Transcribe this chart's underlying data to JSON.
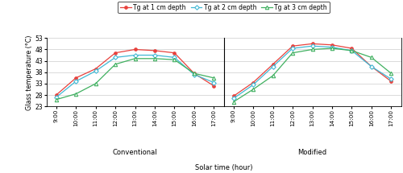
{
  "time_labels": [
    "9:00",
    "10:00",
    "11:00",
    "12:00",
    "13:00",
    "14:00",
    "15:00",
    "16:00",
    "17:00"
  ],
  "conv_1cm": [
    28.0,
    35.5,
    39.5,
    46.5,
    48.0,
    47.5,
    46.5,
    37.5,
    32.0
  ],
  "conv_2cm": [
    27.0,
    34.0,
    38.5,
    44.5,
    45.5,
    45.5,
    44.5,
    37.0,
    33.5
  ],
  "conv_3cm": [
    26.0,
    28.5,
    33.0,
    41.5,
    44.0,
    44.0,
    43.5,
    37.5,
    35.5
  ],
  "mod_1cm": [
    27.5,
    33.5,
    41.5,
    49.5,
    50.5,
    50.0,
    48.5,
    40.5,
    34.0
  ],
  "mod_2cm": [
    26.5,
    32.5,
    40.5,
    48.5,
    49.5,
    49.0,
    47.5,
    40.5,
    35.0
  ],
  "mod_3cm": [
    25.0,
    30.5,
    36.5,
    46.5,
    48.0,
    48.5,
    47.5,
    44.5,
    37.5
  ],
  "color_1cm": "#e8413c",
  "color_2cm": "#40b8d4",
  "color_3cm": "#40b060",
  "ylabel": "Glass temperature (°C)",
  "xlabel": "Solar time (hour)",
  "label_1cm": "Tg at 1 cm depth",
  "label_2cm": "Tg at 2 cm depth",
  "label_3cm": "Tg at 3 cm depth",
  "panel1_label": "Conventional",
  "panel2_label": "Modified",
  "ylim": [
    23,
    53
  ],
  "yticks": [
    23,
    28,
    33,
    38,
    43,
    48,
    53
  ]
}
